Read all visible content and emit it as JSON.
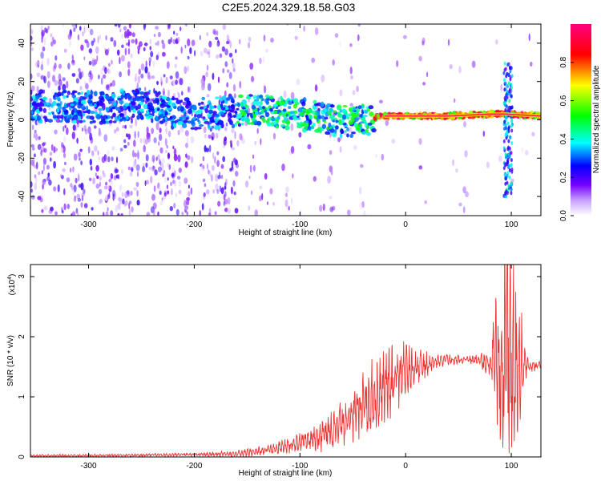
{
  "title": "C2E5.2024.329.18.58.G03",
  "chart_data": [
    {
      "type": "heatmap",
      "xlabel": "Height of straight line (km)",
      "ylabel": "Frequency (Hz)",
      "xlim": [
        -355,
        128
      ],
      "ylim": [
        -50,
        50
      ],
      "x_ticks": [
        -300,
        -200,
        -100,
        0,
        100
      ],
      "x_tick_labels": [
        "-300",
        "-200",
        "-100",
        "0",
        "100"
      ],
      "y_ticks": [
        -40,
        -20,
        0,
        20,
        40
      ],
      "y_tick_labels": [
        "-40",
        "-20",
        "0",
        "20",
        "40"
      ],
      "colorbar": {
        "label": "Normalized spectral amplitude",
        "range": [
          0,
          1
        ],
        "ticks": [
          0.0,
          0.2,
          0.4,
          0.6,
          0.8
        ],
        "tick_labels": [
          "0.0",
          "0.2",
          "0.4",
          "0.6",
          "0.8"
        ],
        "colors": [
          "#ffffff",
          "#7700ff",
          "#0000ff",
          "#00ffff",
          "#00ff00",
          "#ffff00",
          "#ff0000",
          "#ff0080"
        ]
      },
      "ridge": [
        {
          "x": -320,
          "y": 7
        },
        {
          "x": -280,
          "y": 6
        },
        {
          "x": -250,
          "y": 9
        },
        {
          "x": -220,
          "y": 4
        },
        {
          "x": -200,
          "y": 3
        },
        {
          "x": -150,
          "y": 5
        },
        {
          "x": -120,
          "y": 4
        },
        {
          "x": -100,
          "y": 3
        },
        {
          "x": -80,
          "y": 1
        },
        {
          "x": -60,
          "y": -1
        },
        {
          "x": -40,
          "y": 0
        },
        {
          "x": -20,
          "y": 2
        },
        {
          "x": 0,
          "y": 2
        },
        {
          "x": 40,
          "y": 2
        },
        {
          "x": 80,
          "y": 3
        },
        {
          "x": 95,
          "y": 3
        },
        {
          "x": 128,
          "y": 2
        }
      ]
    },
    {
      "type": "line",
      "xlabel": "Height of straight line (km)",
      "ylabel": "SNR (10 * v/v)",
      "y_multiplier": "(x10",
      "y_multiplier_exp": "4",
      "xlim": [
        -355,
        128
      ],
      "ylim": [
        0,
        3.2
      ],
      "x_ticks": [
        -300,
        -200,
        -100,
        0,
        100
      ],
      "x_tick_labels": [
        "-300",
        "-200",
        "-100",
        "0",
        "100"
      ],
      "y_ticks": [
        0,
        1,
        2,
        3
      ],
      "y_tick_labels": [
        "0",
        "1",
        "2",
        "3"
      ],
      "line_color": "#ee3333",
      "envelope": [
        {
          "x": -355,
          "y": 0.02
        },
        {
          "x": -250,
          "y": 0.03
        },
        {
          "x": -160,
          "y": 0.05
        },
        {
          "x": -140,
          "y": 0.1
        },
        {
          "x": -120,
          "y": 0.15
        },
        {
          "x": -100,
          "y": 0.25
        },
        {
          "x": -80,
          "y": 0.35
        },
        {
          "x": -60,
          "y": 0.55
        },
        {
          "x": -40,
          "y": 0.85
        },
        {
          "x": -20,
          "y": 1.15
        },
        {
          "x": 0,
          "y": 1.4
        },
        {
          "x": 20,
          "y": 1.55
        },
        {
          "x": 40,
          "y": 1.62
        },
        {
          "x": 60,
          "y": 1.62
        },
        {
          "x": 75,
          "y": 1.58
        },
        {
          "x": 90,
          "y": 1.5
        },
        {
          "x": 100,
          "y": 1.5
        },
        {
          "x": 110,
          "y": 1.52
        },
        {
          "x": 128,
          "y": 1.52
        }
      ],
      "amplitude": [
        {
          "x": -355,
          "y": 0.01
        },
        {
          "x": -200,
          "y": 0.015
        },
        {
          "x": -160,
          "y": 0.03
        },
        {
          "x": -100,
          "y": 0.08
        },
        {
          "x": -60,
          "y": 0.2
        },
        {
          "x": -30,
          "y": 0.35
        },
        {
          "x": -10,
          "y": 0.35
        },
        {
          "x": 10,
          "y": 0.2
        },
        {
          "x": 30,
          "y": 0.06
        },
        {
          "x": 60,
          "y": 0.03
        },
        {
          "x": 80,
          "y": 0.15
        },
        {
          "x": 95,
          "y": 1.5
        },
        {
          "x": 105,
          "y": 0.8
        },
        {
          "x": 115,
          "y": 0.1
        },
        {
          "x": 128,
          "y": 0.03
        }
      ]
    }
  ]
}
